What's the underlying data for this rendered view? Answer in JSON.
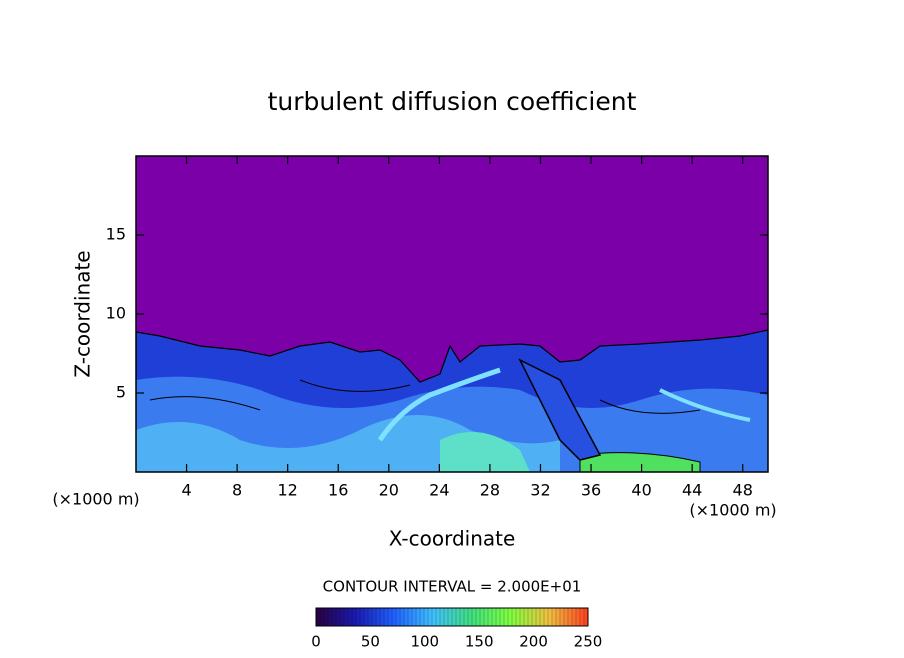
{
  "chart_data": {
    "type": "contour",
    "title": "turbulent diffusion coefficient",
    "x_label": "X-coordinate",
    "y_label": "Z-coordinate",
    "x_unit": "(×1000 m)",
    "y_unit": "(×1000 m)",
    "xlim": [
      0,
      50
    ],
    "xticks": [
      4,
      8,
      12,
      16,
      20,
      24,
      28,
      32,
      36,
      40,
      44,
      48
    ],
    "ylim": [
      0,
      20
    ],
    "yticks": [
      5,
      10,
      15
    ],
    "contour_interval_label": "CONTOUR INTERVAL = 2.000E+01",
    "clim": [
      0,
      250
    ],
    "colorbar_ticks": [
      0,
      50,
      100,
      150,
      200,
      250
    ],
    "colormap": [
      "#2a0040",
      "#1a1ab0",
      "#2060ff",
      "#40c0ff",
      "#40e080",
      "#80ff40",
      "#f0c040",
      "#ff4020"
    ]
  }
}
